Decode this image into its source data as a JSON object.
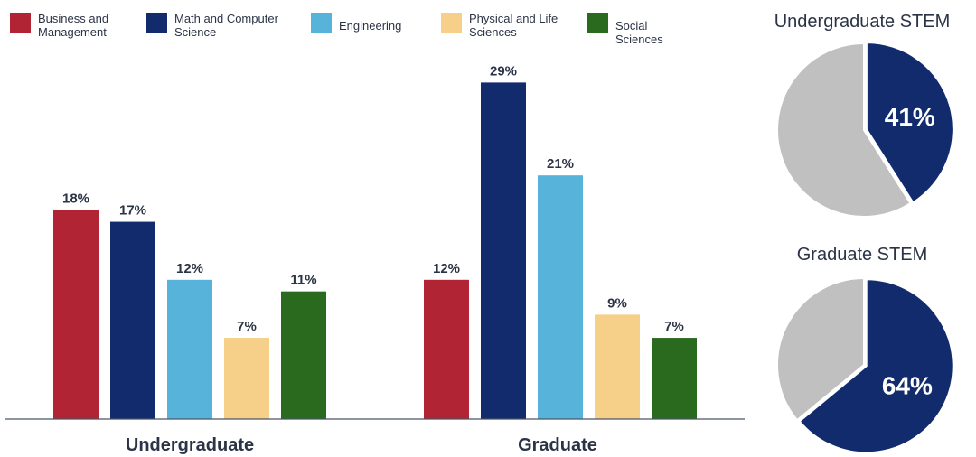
{
  "chart_data": [
    {
      "type": "bar",
      "categories": [
        "Undergraduate",
        "Graduate"
      ],
      "series": [
        {
          "name": "Business and Management",
          "color": "#b12434",
          "values": [
            18,
            12
          ]
        },
        {
          "name": "Math and Computer Science",
          "color": "#112b6c",
          "values": [
            17,
            29
          ]
        },
        {
          "name": "Engineering",
          "color": "#58b3da",
          "values": [
            12,
            21
          ]
        },
        {
          "name": "Physical and Life Sciences",
          "color": "#f6cf89",
          "values": [
            7,
            9
          ]
        },
        {
          "name": "Social Sciences",
          "color": "#2a6a1f",
          "values": [
            11,
            7
          ]
        }
      ],
      "value_format": "percent",
      "ylim": [
        0,
        33
      ],
      "grid": false,
      "legend": "top"
    },
    {
      "type": "pie",
      "title": "Undergraduate STEM",
      "slices": [
        {
          "value": 41,
          "label": "41%",
          "color": "#112b6c"
        },
        {
          "value": 59,
          "label": "",
          "color": "#c0c0c0"
        }
      ]
    },
    {
      "type": "pie",
      "title": "Graduate STEM",
      "slices": [
        {
          "value": 64,
          "label": "64%",
          "color": "#112b6c"
        },
        {
          "value": 36,
          "label": "",
          "color": "#c0c0c0"
        }
      ]
    }
  ]
}
